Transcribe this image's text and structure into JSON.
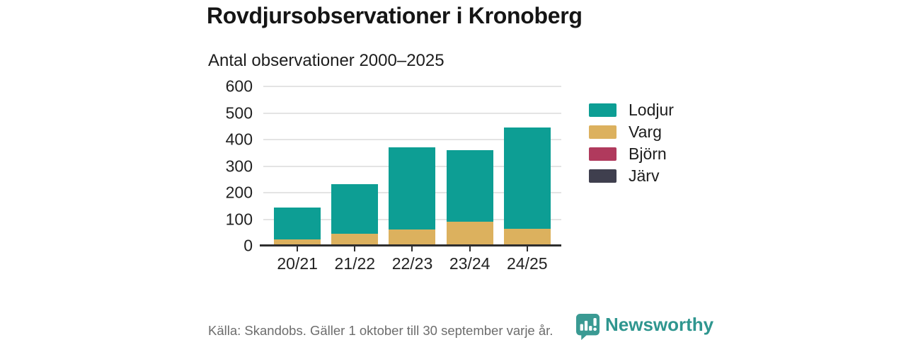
{
  "title": "Rovdjursobservationer i Kronoberg",
  "subtitle": "Antal observationer 2000–2025",
  "footer": {
    "source": "Källa: Skandobs. Gäller 1 oktober till 30 september varje år.",
    "brand": "Newsworthy"
  },
  "colors": {
    "lodjur": "#0d9e94",
    "varg": "#dcb15e",
    "bjorn": "#b03a5d",
    "jarv": "#3f3f4e",
    "brand_teal": "#2f968f",
    "gridline": "#e4e4e4",
    "axis": "#2e2e2e",
    "footer_text": "#6d6d6d"
  },
  "chart_data": {
    "type": "bar",
    "stacked": true,
    "title": "Rovdjursobservationer i Kronoberg",
    "subtitle": "Antal observationer 2000–2025",
    "categories": [
      "20/21",
      "21/22",
      "22/23",
      "23/24",
      "24/25"
    ],
    "series": [
      {
        "name": "Lodjur",
        "color": "#0d9e94",
        "values": [
          119,
          188,
          310,
          270,
          380
        ]
      },
      {
        "name": "Varg",
        "color": "#dcb15e",
        "values": [
          25,
          45,
          62,
          90,
          65
        ]
      },
      {
        "name": "Björn",
        "color": "#b03a5d",
        "values": [
          0,
          0,
          0,
          0,
          0
        ]
      },
      {
        "name": "Järv",
        "color": "#3f3f4e",
        "values": [
          0,
          0,
          0,
          0,
          0
        ]
      }
    ],
    "stack_order_bottom_up": [
      "Varg",
      "Lodjur",
      "Björn",
      "Järv"
    ],
    "totals": [
      144,
      233,
      372,
      360,
      445
    ],
    "xlabel": "",
    "ylabel": "",
    "ylim": [
      0,
      600
    ],
    "yticks": [
      0,
      100,
      200,
      300,
      400,
      500,
      600
    ],
    "grid": true,
    "legend_position": "right"
  }
}
